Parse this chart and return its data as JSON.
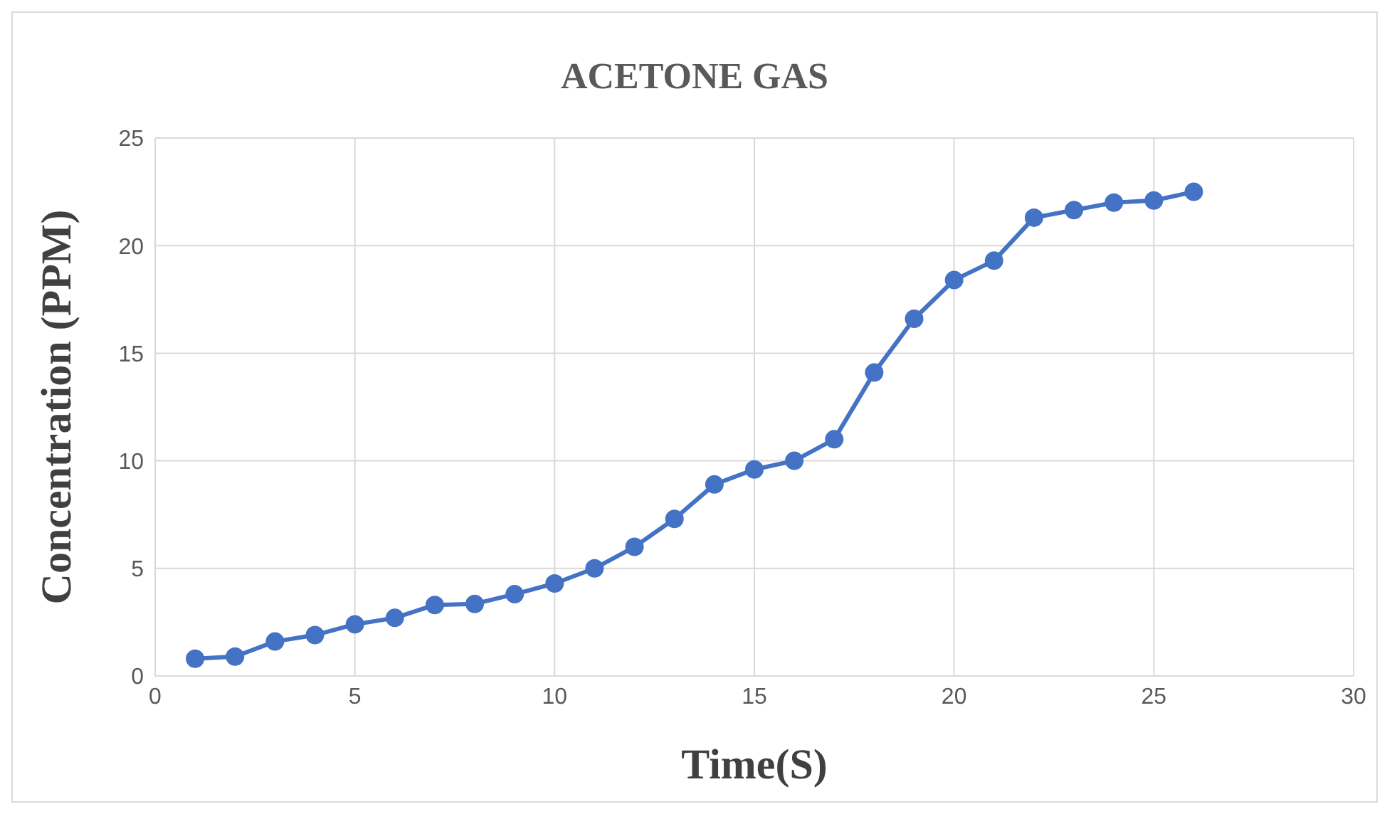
{
  "chart_data": {
    "type": "line",
    "title": "ACETONE  GAS",
    "xlabel": "Time(S)",
    "ylabel": "Concentration (PPM)",
    "x": [
      1,
      2,
      3,
      4,
      5,
      6,
      7,
      8,
      9,
      10,
      11,
      12,
      13,
      14,
      15,
      16,
      17,
      18,
      19,
      20,
      21,
      22,
      23,
      24,
      25,
      26
    ],
    "series": [
      {
        "color": "#4472c4",
        "values": [
          0.8,
          0.9,
          1.6,
          1.9,
          2.4,
          2.7,
          3.3,
          3.35,
          3.8,
          4.3,
          5.0,
          6.0,
          7.3,
          8.9,
          9.6,
          10.0,
          11.0,
          14.1,
          16.6,
          18.4,
          19.3,
          21.3,
          21.65,
          22.0,
          22.1,
          22.5
        ]
      }
    ],
    "xlim": [
      0,
      30
    ],
    "xticks": [
      0,
      5,
      10,
      15,
      20,
      25,
      30
    ],
    "ylim": [
      0,
      25
    ],
    "yticks": [
      0,
      5,
      10,
      15,
      20,
      25
    ],
    "grid": true,
    "marker": "circle",
    "line_style": "solid"
  }
}
